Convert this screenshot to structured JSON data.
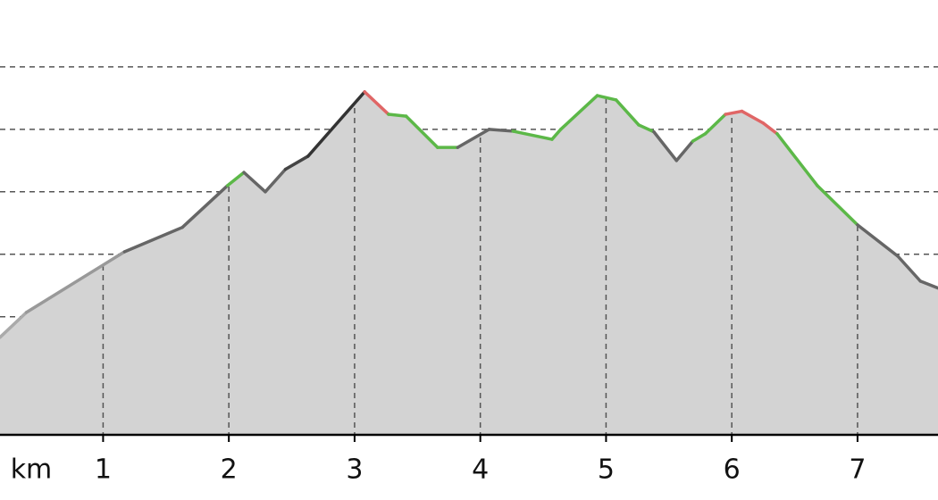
{
  "chart_data": {
    "type": "area",
    "x_label": "km",
    "xlim": [
      0.18,
      7.64
    ],
    "xticks": [
      1,
      2,
      3,
      4,
      5,
      6,
      7
    ],
    "ylim": [
      1.1,
      70.7
    ],
    "yticks": [
      10,
      20,
      30,
      40,
      50,
      60
    ],
    "grid": true,
    "fill_color": "#d3d3d3",
    "series": [
      {
        "x": [
          0.18,
          0.39,
          1.17,
          1.63,
          1.99,
          2.12,
          2.29,
          2.45,
          2.63,
          3.08,
          3.27,
          3.41,
          3.66,
          3.82,
          4.07,
          4.26,
          4.57,
          4.64,
          4.93,
          5.08,
          5.26,
          5.38,
          5.56,
          5.69,
          5.79,
          5.95,
          6.08,
          6.25,
          6.36,
          6.68,
          7.0,
          7.32,
          7.5,
          7.64
        ],
        "values": [
          16.7,
          20.7,
          30.4,
          34.3,
          41.0,
          43.1,
          40.0,
          43.6,
          45.7,
          56.0,
          52.4,
          52.1,
          47.1,
          47.1,
          50.0,
          49.7,
          48.4,
          50.0,
          55.4,
          54.7,
          50.7,
          49.6,
          45.0,
          48.1,
          49.3,
          52.4,
          52.9,
          51.0,
          49.3,
          41.0,
          34.7,
          29.7,
          25.7,
          24.6
        ],
        "segment_colors": [
          "#aaaaaa",
          "#999999",
          "#666666",
          "#666666",
          "#5cb848",
          "#666666",
          "#666666",
          "#444444",
          "#333333",
          "#e06666",
          "#5cb848",
          "#5cb848",
          "#5cb848",
          "#666666",
          "#666666",
          "#5cb848",
          "#5cb848",
          "#5cb848",
          "#5cb848",
          "#5cb848",
          "#5cb848",
          "#666666",
          "#666666",
          "#5cb848",
          "#5cb848",
          "#e06666",
          "#e06666",
          "#e06666",
          "#5cb848",
          "#5cb848",
          "#666666",
          "#666666",
          "#666666",
          "#666666"
        ]
      }
    ]
  }
}
